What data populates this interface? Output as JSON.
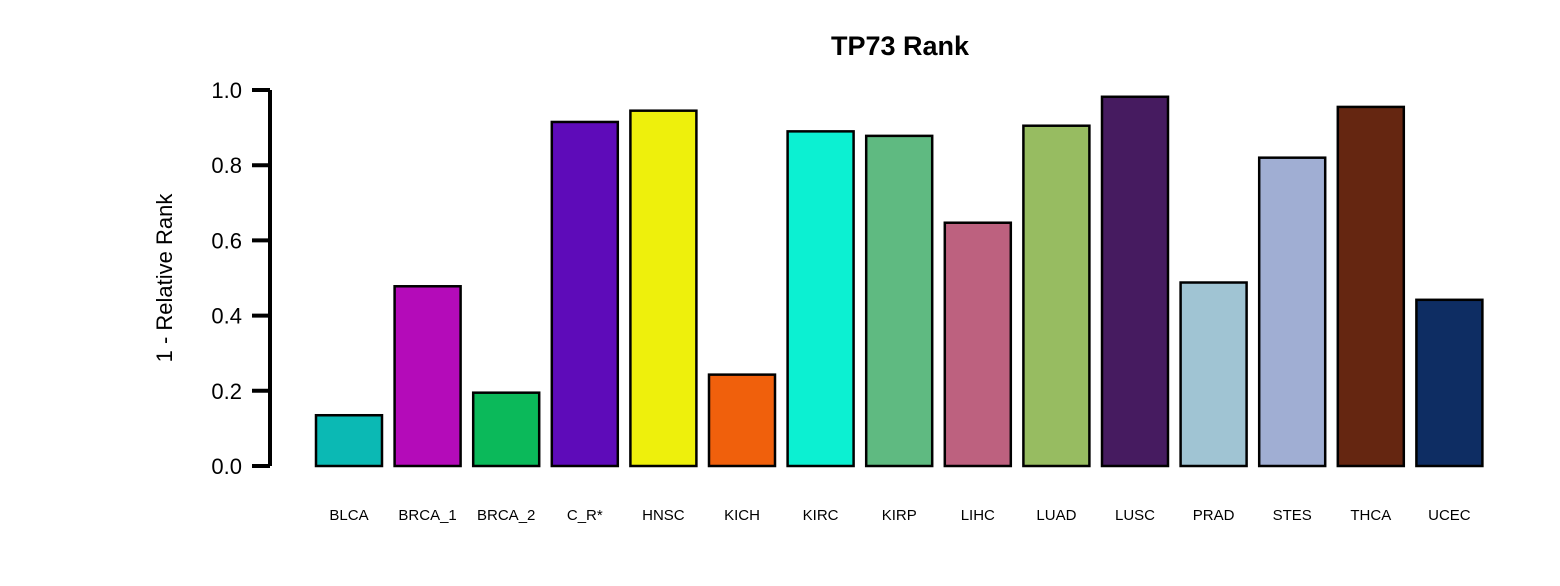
{
  "chart_data": {
    "type": "bar",
    "title": "TP73 Rank",
    "ylabel": "1 - Relative Rank",
    "ylim": [
      0,
      1.0
    ],
    "yticks": [
      "0.0",
      "0.2",
      "0.4",
      "0.6",
      "0.8",
      "1.0"
    ],
    "grid": false,
    "categories": [
      "BLCA",
      "BRCA_1",
      "BRCA_2",
      "C_R*",
      "HNSC",
      "KICH",
      "KIRC",
      "KIRP",
      "LIHC",
      "LUAD",
      "LUSC",
      "PRAD",
      "STES",
      "THCA",
      "UCEC"
    ],
    "values": [
      0.135,
      0.478,
      0.195,
      0.915,
      0.945,
      0.243,
      0.89,
      0.878,
      0.647,
      0.905,
      0.982,
      0.488,
      0.82,
      0.955,
      0.442
    ],
    "colors": [
      "#0BB9B4",
      "#B40BB9",
      "#0BB95A",
      "#5E0BB9",
      "#EEF00C",
      "#F0600C",
      "#0CF0D2",
      "#5FBA81",
      "#BD617F",
      "#97BC61",
      "#461B60",
      "#A0C4D3",
      "#A0AED3",
      "#652611",
      "#0E2D63"
    ]
  }
}
